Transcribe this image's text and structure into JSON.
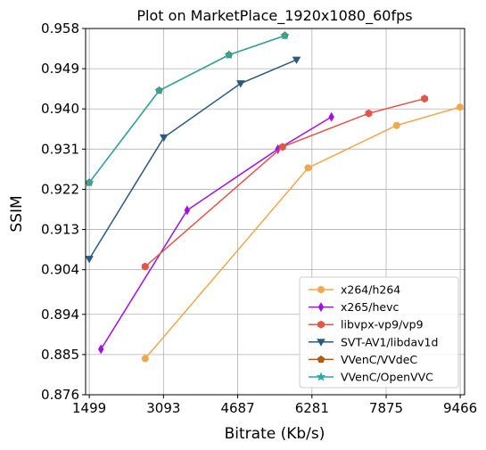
{
  "chart_data": {
    "type": "line",
    "title": "Plot on MarketPlace_1920x1080_60fps",
    "xlabel": "Bitrate (Kb/s)",
    "ylabel": "SSIM",
    "xlim": [
      1420,
      9560
    ],
    "ylim": [
      0.876,
      0.958
    ],
    "xticks": [
      1499,
      3093,
      4687,
      6281,
      7875,
      9466
    ],
    "xtick_labels": [
      "1499",
      "3093",
      "4687",
      "6281",
      "7875",
      "9466"
    ],
    "yticks": [
      0.876,
      0.885,
      0.894,
      0.904,
      0.913,
      0.922,
      0.931,
      0.94,
      0.949,
      0.958
    ],
    "ytick_labels": [
      "0.876",
      "0.885",
      "0.894",
      "0.904",
      "0.913",
      "0.922",
      "0.931",
      "0.940",
      "0.949",
      "0.958"
    ],
    "grid": true,
    "legend_position": "lower-right",
    "series": [
      {
        "name": "x264/h264",
        "color": "#f0a84e",
        "marker": "circle",
        "x": [
          2700,
          6200,
          8100,
          9460
        ],
        "y": [
          0.8841,
          0.9268,
          0.9363,
          0.9404
        ]
      },
      {
        "name": "x265/hevc",
        "color": "#a20fe6",
        "marker": "diamond",
        "x": [
          1750,
          3600,
          5550,
          6700
        ],
        "y": [
          0.8862,
          0.9173,
          0.931,
          0.9382
        ]
      },
      {
        "name": "libvpx-vp9/vp9",
        "color": "#e0574a",
        "marker": "hexagon",
        "x": [
          2700,
          5650,
          7500,
          8700
        ],
        "y": [
          0.9047,
          0.9315,
          0.939,
          0.9423
        ]
      },
      {
        "name": "SVT-AV1/libdav1d",
        "color": "#2a5a80",
        "marker": "triangle-down",
        "x": [
          1499,
          3100,
          4750,
          5950
        ],
        "y": [
          0.9064,
          0.9336,
          0.9457,
          0.951
        ]
      },
      {
        "name": "VVenC/VVdeC",
        "color": "#b05a12",
        "marker": "pentagon",
        "x": [
          1499,
          3000,
          4500,
          5700
        ],
        "y": [
          0.9235,
          0.9441,
          0.9521,
          0.9564
        ]
      },
      {
        "name": "VVenC/OpenVVC",
        "color": "#2aa9a3",
        "marker": "star",
        "x": [
          1499,
          3000,
          4500,
          5700
        ],
        "y": [
          0.9235,
          0.9441,
          0.9521,
          0.9564
        ]
      }
    ]
  }
}
